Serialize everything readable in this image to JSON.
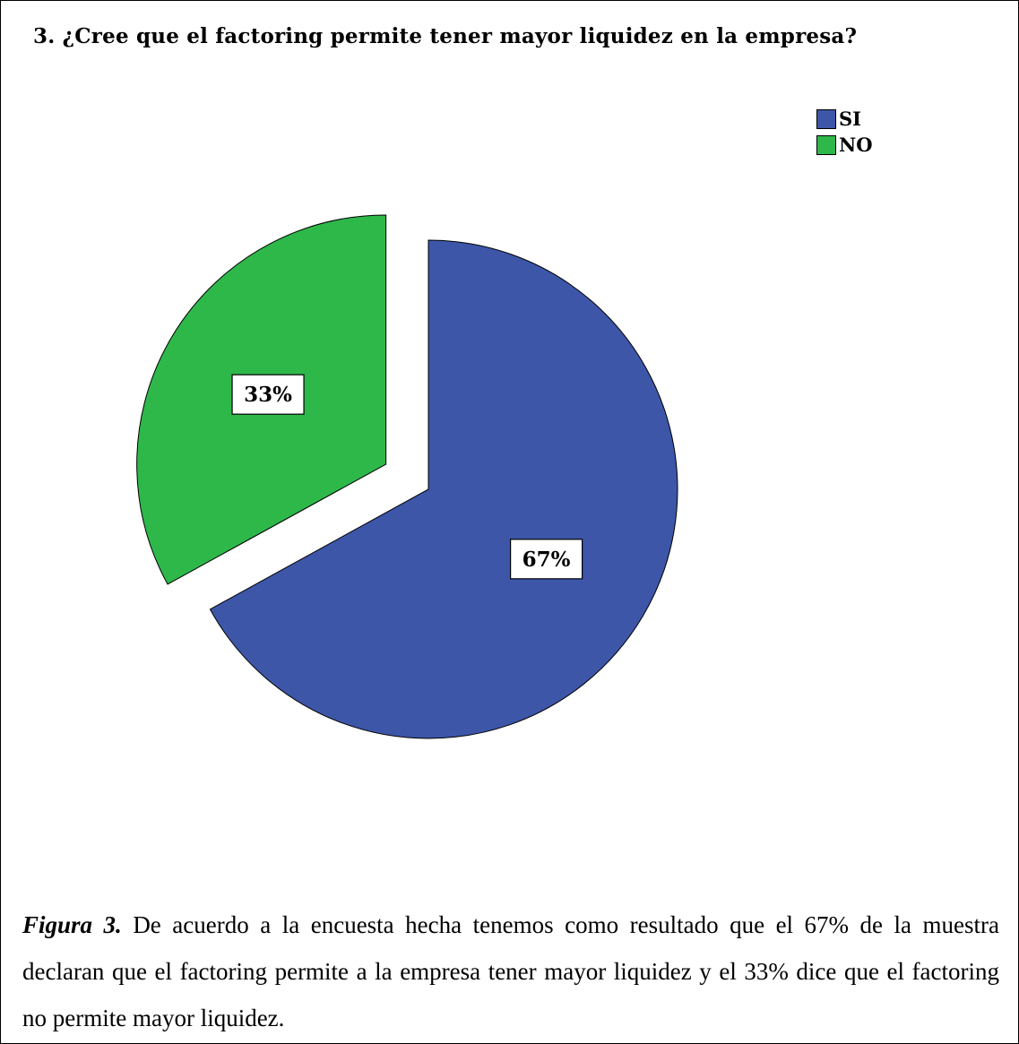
{
  "chart_data": {
    "type": "pie",
    "title": "3. ¿Cree que el factoring permite tener mayor liquidez en la empresa?",
    "slices": [
      {
        "label": "SI",
        "value": 67,
        "display": "67%",
        "color": "#3d56a8"
      },
      {
        "label": "NO",
        "value": 33,
        "display": "33%",
        "color": "#2eb84a"
      }
    ],
    "exploded": "NO",
    "legend_position": "top-right"
  },
  "caption": {
    "lead": "Figura 3.",
    "text": "De acuerdo a la encuesta hecha tenemos como resultado que el 67% de la muestra declaran que el factoring permite a la empresa tener mayor liquidez y el 33% dice que el factoring no permite mayor liquidez."
  }
}
